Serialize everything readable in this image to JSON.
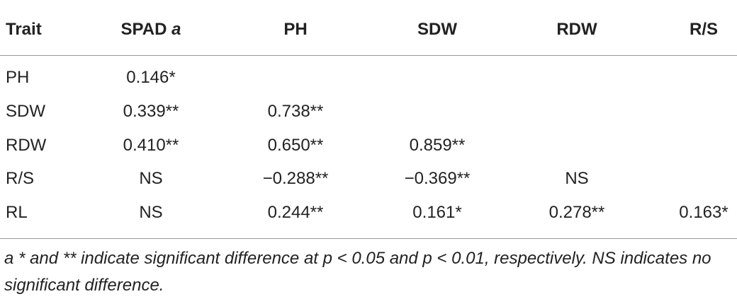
{
  "table": {
    "header": [
      "Trait",
      "SPAD",
      "PH",
      "SDW",
      "RDW",
      "R/S"
    ],
    "header_note": "a",
    "rows": [
      [
        "PH",
        "0.146*",
        null,
        null,
        null,
        null
      ],
      [
        "SDW",
        "0.339**",
        "0.738**",
        null,
        null,
        null
      ],
      [
        "RDW",
        "0.410**",
        "0.650**",
        "0.859**",
        null,
        null
      ],
      [
        "R/S",
        "NS",
        "−0.288**",
        "−0.369**",
        "NS",
        null
      ],
      [
        "RL",
        "NS",
        "0.244**",
        "0.161*",
        "0.278**",
        "0.163*"
      ]
    ]
  },
  "footnote": {
    "marker": "a",
    "text": "* and ** indicate significant difference at p < 0.05 and p < 0.01, respectively. NS indicates no significant difference."
  }
}
